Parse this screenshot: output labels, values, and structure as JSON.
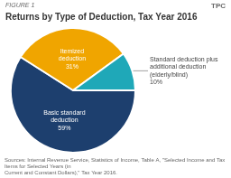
{
  "chart_data": {
    "type": "pie",
    "title": "Returns by Type of Deduction, Tax Year 2016",
    "subtitle": "FIGURE 1",
    "categories": [
      "Basic standard\ndeduction",
      "Itemized\ndeduction",
      "Standard deduction plus\nadditional deduction\n(elderly/blind)"
    ],
    "values": [
      59,
      31,
      10
    ],
    "value_labels": [
      "59%",
      "31%",
      "10%"
    ],
    "data_labels": true,
    "colors": [
      "#1d3f6e",
      "#f0a500",
      "#1fa8b8"
    ],
    "annotations": [
      "Sources: Internal Revenue Service, Statistics of Income, Table A, \"Selected Income and Tax Items for Selected Years (in\nCurrent and Constant Dollars),\" Tax Year 2016.",
      "TPC"
    ]
  }
}
